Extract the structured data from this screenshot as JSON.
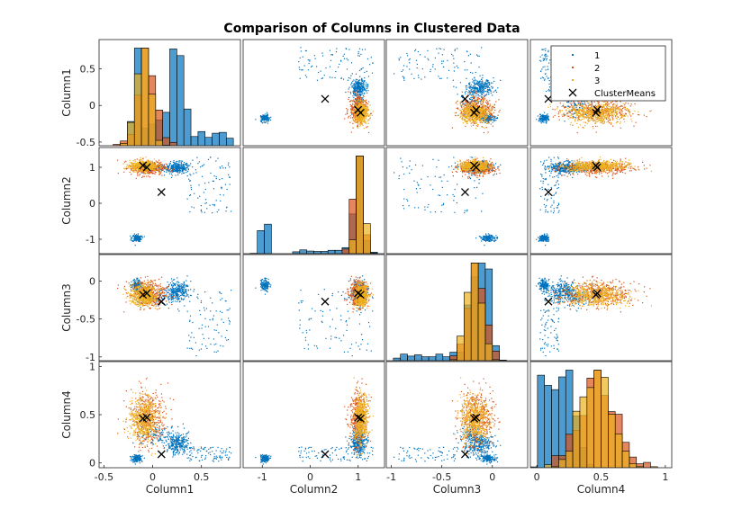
{
  "chart_data": {
    "type": "scatter",
    "title": "Comparison of Columns in Clustered Data",
    "variables": [
      "Column1",
      "Column2",
      "Column3",
      "Column4"
    ],
    "limits": {
      "Column1": [
        -0.55,
        0.9
      ],
      "Column2": [
        -1.4,
        1.55
      ],
      "Column3": [
        -1.05,
        0.35
      ],
      "Column4": [
        -0.05,
        1.05
      ]
    },
    "ticks": {
      "Column1": [
        -0.5,
        0,
        0.5
      ],
      "Column2": [
        -1,
        0,
        1
      ],
      "Column3": [
        -1,
        -0.5,
        0
      ],
      "Column4": [
        0,
        0.5,
        1
      ]
    },
    "tick_labels": {
      "Column1": [
        "-0.5",
        "0",
        "0.5"
      ],
      "Column2": [
        "-1",
        "0",
        "1"
      ],
      "Column3": [
        "-1",
        "-0.5",
        "0"
      ],
      "Column4": [
        "0",
        "0.5",
        "1"
      ]
    },
    "series": [
      {
        "name": "1",
        "color": "#0072BD"
      },
      {
        "name": "2",
        "color": "#D95319"
      },
      {
        "name": "3",
        "color": "#EDB120"
      },
      {
        "name": "ClusterMeans",
        "color": "#000000",
        "marker": "x"
      }
    ],
    "cluster_means": [
      {
        "cluster": "1",
        "Column1": 0.09,
        "Column2": 0.31,
        "Column3": -0.27,
        "Column4": 0.09
      },
      {
        "cluster": "2",
        "Column1": -0.06,
        "Column2": 1.0,
        "Column3": -0.16,
        "Column4": 0.47
      },
      {
        "cluster": "3",
        "Column1": -0.1,
        "Column2": 1.05,
        "Column3": -0.18,
        "Column4": 0.46
      }
    ],
    "legend_position": "top-right (inside Column1 vs Column4 panel)",
    "grid": false
  }
}
